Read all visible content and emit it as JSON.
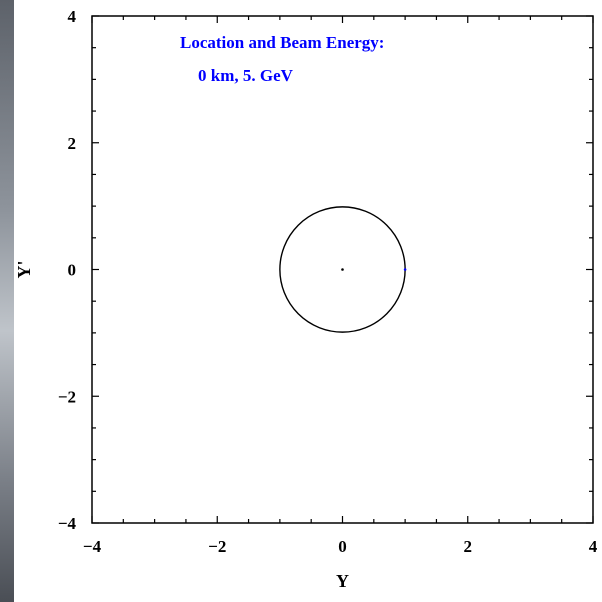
{
  "chart_data": {
    "type": "scatter",
    "xlabel": "Y",
    "ylabel": "Y'",
    "xlim": [
      -4,
      4
    ],
    "ylim": [
      -4,
      4
    ],
    "xticks": [
      -4,
      -2,
      0,
      2,
      4
    ],
    "yticks": [
      -4,
      -2,
      0,
      2,
      4
    ],
    "xtick_labels": [
      "−4",
      "−2",
      "0",
      "2",
      "4"
    ],
    "ytick_labels": [
      "−4",
      "−2",
      "0",
      "2",
      "4"
    ],
    "grid": false,
    "annotation": {
      "line1": "Location and Beam Energy:",
      "line2": "0 km, 5. GeV",
      "color": "#0000ff"
    },
    "series": [
      {
        "type": "circle",
        "center": [
          0,
          0
        ],
        "radius": 1,
        "color": "#000000"
      },
      {
        "type": "point",
        "x": 0,
        "y": 0,
        "color": "#000000"
      },
      {
        "type": "point",
        "x": 1,
        "y": 0,
        "color": "#0000ff"
      }
    ]
  }
}
